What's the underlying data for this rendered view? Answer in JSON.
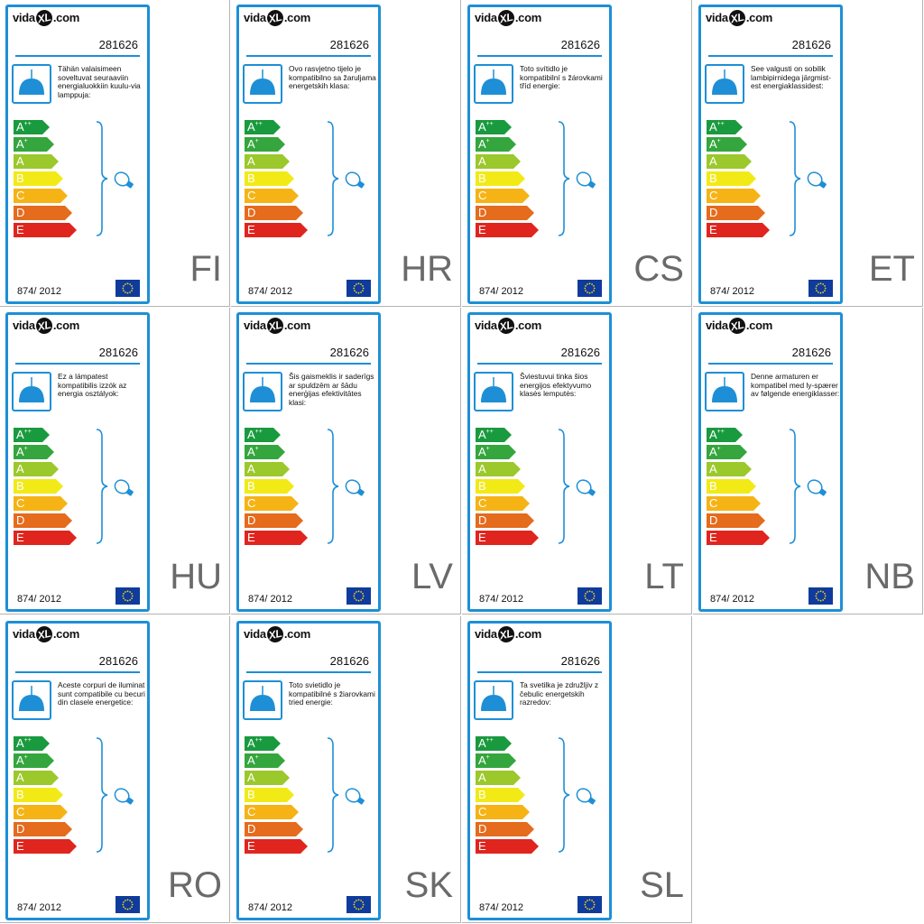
{
  "brand": {
    "logo_pre": "vida",
    "logo_mark": "XL",
    "logo_post": ".com"
  },
  "model": "281626",
  "regulation": "874/ 2012",
  "classes": [
    "A",
    "A",
    "A",
    "B",
    "C",
    "D",
    "E"
  ],
  "class_superscripts": [
    "++",
    "+",
    "",
    "",
    "",
    "",
    ""
  ],
  "class_colors": [
    "#1a9a3e",
    "#34a63d",
    "#9bc82b",
    "#f2ea17",
    "#f6b315",
    "#e56b1d",
    "#e0251f"
  ],
  "accent_color": "#1e8fd6",
  "icons": {
    "lamp": "pendant-lamp-icon",
    "bulb": "bulb-icon",
    "flag": "eu-flag-icon"
  },
  "labels": [
    {
      "lang": "FI",
      "text": "Tähän valaisimeen soveltuvat seuraaviin energialuokkiin kuulu-via lamppuja:"
    },
    {
      "lang": "HR",
      "text": "Ovo rasvjetno tijelo je kompatibilno sa žaruljama energetskih klasa:"
    },
    {
      "lang": "CS",
      "text": "Toto svítidlo je kompatibilní s žárovkami tříd energie:"
    },
    {
      "lang": "ET",
      "text": "See valgusti on sobilik lambipirnidega järgmist-est energiaklassidest:"
    },
    {
      "lang": "HU",
      "text": "Ez a lámpatest kompatibilis izzók az energia osztályok:"
    },
    {
      "lang": "LV",
      "text": "Šis gaismeklis ir saderīgs ar spuldzēm ar šādu enerģijas efektivitātes klasi:"
    },
    {
      "lang": "LT",
      "text": "Šviestuvui tinka šios energijos efektyvumo klasės lemputės:"
    },
    {
      "lang": "NB",
      "text": "Denne armaturen er kompatibel med ly-spærer av følgende energiklasser:"
    },
    {
      "lang": "RO",
      "text": "Aceste corpuri de iluminat sunt compatibile cu becuri din clasele energetice:"
    },
    {
      "lang": "SK",
      "text": "Toto svietidlo je kompatibilné s žiarovkami tried energie:"
    },
    {
      "lang": "SL",
      "text": "Ta svetilka je združljiv z čebulic energetskih razredov:"
    }
  ]
}
